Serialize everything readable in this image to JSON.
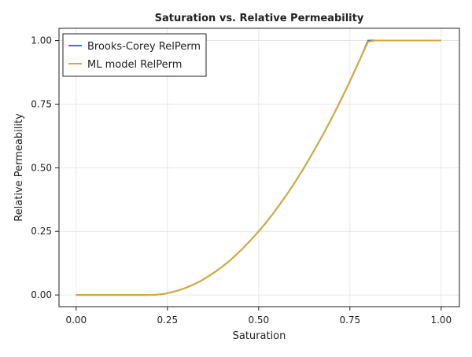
{
  "chart_data": {
    "type": "line",
    "title": "Saturation vs. Relative Permeability",
    "xlabel": "Saturation",
    "ylabel": "Relative Permeability",
    "xlim": [
      -0.047,
      1.05
    ],
    "ylim": [
      -0.046,
      1.048
    ],
    "xticks": [
      0.0,
      0.25,
      0.5,
      0.75,
      1.0
    ],
    "xtick_labels": [
      "0.00",
      "0.25",
      "0.50",
      "0.75",
      "1.00"
    ],
    "yticks": [
      0.0,
      0.25,
      0.5,
      0.75,
      1.0
    ],
    "ytick_labels": [
      "0.00",
      "0.25",
      "0.50",
      "0.75",
      "1.00"
    ],
    "grid": true,
    "legend_position": "top-left",
    "x": [
      0,
      0.02,
      0.04,
      0.06,
      0.08,
      0.1,
      0.12,
      0.14,
      0.16,
      0.18,
      0.2,
      0.22,
      0.24,
      0.26,
      0.28,
      0.3,
      0.32,
      0.34,
      0.36,
      0.38,
      0.4,
      0.42,
      0.44,
      0.46,
      0.48,
      0.5,
      0.52,
      0.54,
      0.56,
      0.58,
      0.6,
      0.62,
      0.64,
      0.66,
      0.68,
      0.7,
      0.72,
      0.74,
      0.76,
      0.78,
      0.8,
      0.82,
      0.84,
      0.86,
      0.88,
      0.9,
      0.92,
      0.94,
      0.96,
      0.98,
      1.0
    ],
    "series": [
      {
        "name": "Brooks-Corey RelPerm",
        "color": "#2f7fb0",
        "values": [
          0,
          0,
          0,
          0,
          0,
          0,
          0,
          0,
          0,
          0,
          0,
          0.001,
          0.004,
          0.01,
          0.018,
          0.028,
          0.04,
          0.054,
          0.071,
          0.09,
          0.111,
          0.134,
          0.16,
          0.188,
          0.218,
          0.25,
          0.284,
          0.321,
          0.36,
          0.401,
          0.444,
          0.49,
          0.538,
          0.588,
          0.64,
          0.694,
          0.751,
          0.81,
          0.871,
          0.934,
          1.0,
          1,
          1,
          1,
          1,
          1,
          1,
          1,
          1,
          1,
          1
        ]
      },
      {
        "name": "ML model RelPerm",
        "color": "#d8a93a",
        "values": [
          0,
          0,
          0,
          0,
          0,
          0,
          0,
          0,
          0,
          0,
          0,
          0.001,
          0.004,
          0.01,
          0.018,
          0.028,
          0.04,
          0.054,
          0.071,
          0.09,
          0.111,
          0.134,
          0.16,
          0.188,
          0.218,
          0.25,
          0.284,
          0.321,
          0.36,
          0.401,
          0.444,
          0.49,
          0.538,
          0.588,
          0.64,
          0.694,
          0.751,
          0.81,
          0.871,
          0.934,
          0.995,
          1,
          1,
          1,
          1,
          1,
          1,
          1,
          1,
          1,
          1
        ]
      }
    ]
  }
}
